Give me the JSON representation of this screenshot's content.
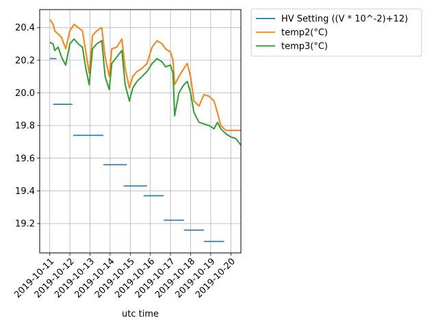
{
  "chart_data": {
    "type": "line",
    "title": "",
    "xlabel": "utc time",
    "ylabel": "",
    "grid": true,
    "legend_position": "outside-top-right",
    "xlim": [
      "2019-10-10T12:00",
      "2019-10-20T12:00"
    ],
    "ylim": [
      19.02,
      20.51
    ],
    "x_ticks": [
      "2019-10-11",
      "2019-10-12",
      "2019-10-13",
      "2019-10-14",
      "2019-10-15",
      "2019-10-16",
      "2019-10-17",
      "2019-10-18",
      "2019-10-19",
      "2019-10-20"
    ],
    "y_ticks": [
      "19.2",
      "19.4",
      "19.6",
      "19.8",
      "20.0",
      "20.2",
      "20.4"
    ],
    "series": [
      {
        "name": "HV Setting ((V * 10^-2)+12)",
        "color": "#1f77b4",
        "style": "steps",
        "segments": [
          {
            "x0": "2019-10-11T00:00",
            "x1": "2019-10-11T08:00",
            "y": 20.21
          },
          {
            "x0": "2019-10-11T04:00",
            "x1": "2019-10-12T03:00",
            "y": 19.93
          },
          {
            "x0": "2019-10-12T04:00",
            "x1": "2019-10-13T16:00",
            "y": 19.74
          },
          {
            "x0": "2019-10-13T16:00",
            "x1": "2019-10-14T20:00",
            "y": 19.56
          },
          {
            "x0": "2019-10-14T16:00",
            "x1": "2019-10-15T20:00",
            "y": 19.43
          },
          {
            "x0": "2019-10-15T16:00",
            "x1": "2019-10-16T16:00",
            "y": 19.37
          },
          {
            "x0": "2019-10-16T16:00",
            "x1": "2019-10-17T16:00",
            "y": 19.22
          },
          {
            "x0": "2019-10-17T16:00",
            "x1": "2019-10-18T16:00",
            "y": 19.16
          },
          {
            "x0": "2019-10-18T16:00",
            "x1": "2019-10-19T16:00",
            "y": 19.09
          }
        ]
      },
      {
        "name": "temp2(°C)",
        "color": "#ff7f0e",
        "style": "line",
        "points": [
          [
            "2019-10-11T00:00",
            20.45
          ],
          [
            "2019-10-11T04:00",
            20.42
          ],
          [
            "2019-10-11T06:00",
            20.38
          ],
          [
            "2019-10-11T10:00",
            20.36
          ],
          [
            "2019-10-11T14:00",
            20.34
          ],
          [
            "2019-10-11T19:00",
            20.27
          ],
          [
            "2019-10-12T00:00",
            20.38
          ],
          [
            "2019-10-12T05:00",
            20.42
          ],
          [
            "2019-10-12T10:00",
            20.4
          ],
          [
            "2019-10-12T15:00",
            20.38
          ],
          [
            "2019-10-12T19:00",
            20.25
          ],
          [
            "2019-10-12T23:00",
            20.12
          ],
          [
            "2019-10-13T03:00",
            20.35
          ],
          [
            "2019-10-13T08:00",
            20.38
          ],
          [
            "2019-10-13T14:00",
            20.4
          ],
          [
            "2019-10-13T18:00",
            20.22
          ],
          [
            "2019-10-13T23:00",
            20.1
          ],
          [
            "2019-10-14T02:00",
            20.27
          ],
          [
            "2019-10-14T08:00",
            20.28
          ],
          [
            "2019-10-14T14:00",
            20.33
          ],
          [
            "2019-10-14T18:00",
            20.15
          ],
          [
            "2019-10-14T23:00",
            20.03
          ],
          [
            "2019-10-15T03:00",
            20.1
          ],
          [
            "2019-10-15T08:00",
            20.13
          ],
          [
            "2019-10-15T14:00",
            20.15
          ],
          [
            "2019-10-15T20:00",
            20.18
          ],
          [
            "2019-10-16T02:00",
            20.28
          ],
          [
            "2019-10-16T08:00",
            20.32
          ],
          [
            "2019-10-16T14:00",
            20.3
          ],
          [
            "2019-10-16T18:00",
            20.27
          ],
          [
            "2019-10-17T00:00",
            20.25
          ],
          [
            "2019-10-17T03:00",
            20.2
          ],
          [
            "2019-10-17T05:00",
            20.05
          ],
          [
            "2019-10-17T10:00",
            20.1
          ],
          [
            "2019-10-17T16:00",
            20.15
          ],
          [
            "2019-10-17T20:00",
            20.18
          ],
          [
            "2019-10-18T00:00",
            20.1
          ],
          [
            "2019-10-18T04:00",
            19.95
          ],
          [
            "2019-10-18T10:00",
            19.92
          ],
          [
            "2019-10-18T16:00",
            19.99
          ],
          [
            "2019-10-18T22:00",
            19.98
          ],
          [
            "2019-10-19T04:00",
            19.95
          ],
          [
            "2019-10-19T08:00",
            19.88
          ],
          [
            "2019-10-19T12:00",
            19.8
          ],
          [
            "2019-10-19T18:00",
            19.77
          ],
          [
            "2019-10-20T12:00",
            19.77
          ]
        ]
      },
      {
        "name": "temp3(°C)",
        "color": "#2ca02c",
        "style": "line",
        "points": [
          [
            "2019-10-11T00:00",
            20.31
          ],
          [
            "2019-10-11T04:00",
            20.3
          ],
          [
            "2019-10-11T06:00",
            20.26
          ],
          [
            "2019-10-11T10:00",
            20.28
          ],
          [
            "2019-10-11T14:00",
            20.22
          ],
          [
            "2019-10-11T19:00",
            20.17
          ],
          [
            "2019-10-12T00:00",
            20.3
          ],
          [
            "2019-10-12T05:00",
            20.33
          ],
          [
            "2019-10-12T10:00",
            20.3
          ],
          [
            "2019-10-12T15:00",
            20.28
          ],
          [
            "2019-10-12T19:00",
            20.15
          ],
          [
            "2019-10-12T23:00",
            20.05
          ],
          [
            "2019-10-13T03:00",
            20.27
          ],
          [
            "2019-10-13T08:00",
            20.3
          ],
          [
            "2019-10-13T14:00",
            20.32
          ],
          [
            "2019-10-13T18:00",
            20.1
          ],
          [
            "2019-10-13T23:00",
            20.02
          ],
          [
            "2019-10-14T02:00",
            20.18
          ],
          [
            "2019-10-14T08:00",
            20.22
          ],
          [
            "2019-10-14T14:00",
            20.26
          ],
          [
            "2019-10-14T18:00",
            20.05
          ],
          [
            "2019-10-14T23:00",
            19.95
          ],
          [
            "2019-10-15T03:00",
            20.03
          ],
          [
            "2019-10-15T08:00",
            20.07
          ],
          [
            "2019-10-15T14:00",
            20.1
          ],
          [
            "2019-10-15T20:00",
            20.13
          ],
          [
            "2019-10-16T02:00",
            20.18
          ],
          [
            "2019-10-16T08:00",
            20.21
          ],
          [
            "2019-10-16T14:00",
            20.19
          ],
          [
            "2019-10-16T18:00",
            20.16
          ],
          [
            "2019-10-17T00:00",
            20.17
          ],
          [
            "2019-10-17T03:00",
            20.12
          ],
          [
            "2019-10-17T05:00",
            19.86
          ],
          [
            "2019-10-17T10:00",
            20.0
          ],
          [
            "2019-10-17T16:00",
            20.05
          ],
          [
            "2019-10-17T20:00",
            20.07
          ],
          [
            "2019-10-18T00:00",
            20.0
          ],
          [
            "2019-10-18T04:00",
            19.88
          ],
          [
            "2019-10-18T10:00",
            19.82
          ],
          [
            "2019-10-18T16:00",
            19.81
          ],
          [
            "2019-10-18T22:00",
            19.8
          ],
          [
            "2019-10-19T04:00",
            19.78
          ],
          [
            "2019-10-19T08:00",
            19.82
          ],
          [
            "2019-10-19T12:00",
            19.78
          ],
          [
            "2019-10-19T18:00",
            19.75
          ],
          [
            "2019-10-20T00:00",
            19.73
          ],
          [
            "2019-10-20T06:00",
            19.72
          ],
          [
            "2019-10-20T12:00",
            19.68
          ]
        ]
      }
    ]
  }
}
